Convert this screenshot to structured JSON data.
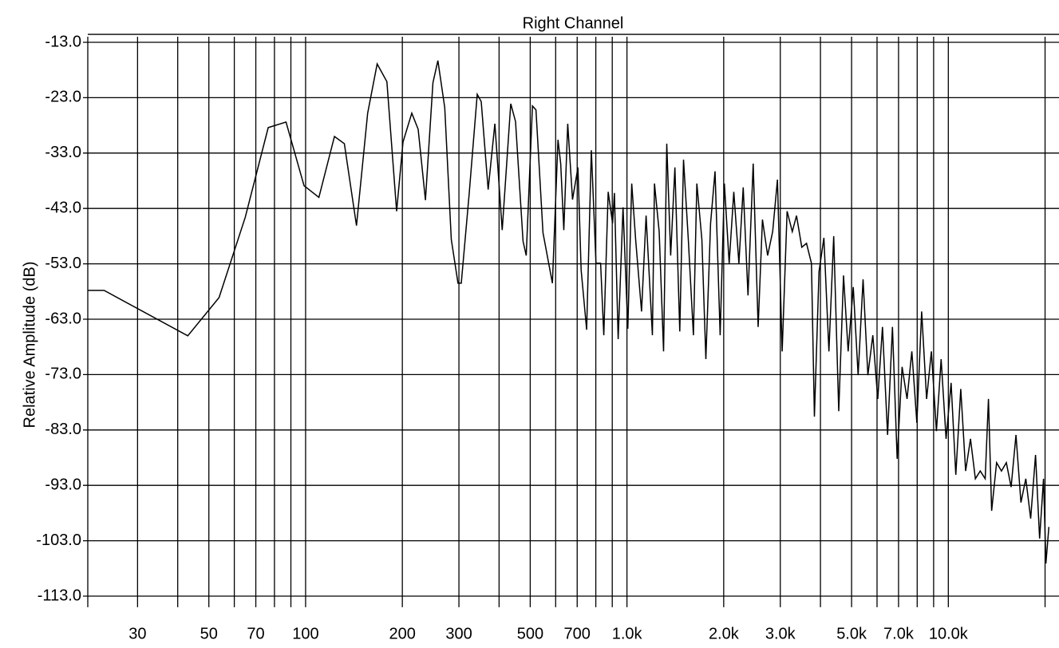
{
  "chart_data": {
    "type": "line",
    "title": "Right Channel",
    "y_label": "Relative Amplitude (dB)",
    "xscale": "log",
    "xlim": [
      21,
      22100
    ],
    "ylim": [
      -115,
      -12
    ],
    "grid": true,
    "xticks": [
      30,
      50,
      70,
      100,
      200,
      300,
      500,
      700,
      {
        "value": 1000,
        "label": "1.0k"
      },
      {
        "value": 2000,
        "label": "2.0k"
      },
      {
        "value": 3000,
        "label": "3.0k"
      },
      {
        "value": 5000,
        "label": "5.0k"
      },
      {
        "value": 7000,
        "label": "7.0k"
      },
      {
        "value": 10000,
        "label": "10.0k"
      }
    ],
    "xminor": [
      40,
      60,
      80,
      90,
      400,
      600,
      800,
      900,
      4000,
      6000,
      8000,
      9000,
      20000
    ],
    "yticks": [
      {
        "value": -13,
        "label": "-13.0"
      },
      {
        "value": -23,
        "label": "-23.0"
      },
      {
        "value": -33,
        "label": "-33.0"
      },
      {
        "value": -43,
        "label": "-43.0"
      },
      {
        "value": -53,
        "label": "-53.0"
      },
      {
        "value": -63,
        "label": "-63.0"
      },
      {
        "value": -73,
        "label": "-73.0"
      },
      {
        "value": -83,
        "label": "-83.0"
      },
      {
        "value": -93,
        "label": "-93.0"
      },
      {
        "value": -103,
        "label": "-103.0"
      },
      {
        "value": -113,
        "label": "-113.0"
      }
    ],
    "x": [
      21,
      23.6,
      43,
      53.8,
      64.9,
      76.5,
      86.9,
      98.9,
      110,
      123,
      132,
      144,
      156,
      167,
      179,
      192,
      201,
      214,
      224,
      236,
      249,
      258,
      271,
      284,
      298,
      305,
      323,
      342,
      352,
      370,
      388,
      409,
      435,
      450,
      475,
      486,
      508,
      521,
      548,
      586,
      610,
      622,
      636,
      654,
      677,
      704,
      720,
      749,
      775,
      801,
      828,
      847,
      874,
      902,
      914,
      939,
      972,
      1006,
      1035,
      1064,
      1110,
      1147,
      1200,
      1218,
      1260,
      1300,
      1330,
      1368,
      1410,
      1460,
      1500,
      1552,
      1610,
      1650,
      1710,
      1760,
      1820,
      1880,
      1950,
      2010,
      2080,
      2150,
      2230,
      2300,
      2380,
      2470,
      2560,
      2640,
      2740,
      2840,
      2940,
      3040,
      3150,
      3270,
      3370,
      3500,
      3620,
      3750,
      3830,
      3960,
      4100,
      4250,
      4400,
      4560,
      4720,
      4880,
      5060,
      5240,
      5430,
      5620,
      5820,
      6030,
      6240,
      6470,
      6700,
      6930,
      7180,
      7440,
      7700,
      7980,
      8260,
      8560,
      8860,
      9180,
      9500,
      9840,
      10200,
      10550,
      10930,
      11320,
      11720,
      12140,
      12570,
      13020,
      13330,
      13640,
      14130,
      14630,
      15150,
      15680,
      16240,
      16820,
      17420,
      18040,
      18680,
      19230,
      19780,
      20120,
      20550
    ],
    "series": [
      {
        "color": "#000000",
        "values": [
          -57.8,
          -57.8,
          -66.0,
          -59.1,
          -44.6,
          -28.4,
          -27.4,
          -38.9,
          -41.0,
          -30.0,
          -31.3,
          -46.1,
          -25.8,
          -16.9,
          -20.1,
          -43.5,
          -31.0,
          -25.8,
          -28.7,
          -41.5,
          -20.3,
          -16.3,
          -24.8,
          -48.6,
          -56.5,
          -56.5,
          -40.2,
          -22.4,
          -23.7,
          -39.6,
          -27.7,
          -46.9,
          -24.1,
          -27.3,
          -48.9,
          -51.5,
          -24.5,
          -25.2,
          -47.4,
          -56.5,
          -30.6,
          -34.9,
          -46.9,
          -27.7,
          -41.4,
          -35.6,
          -54.1,
          -64.9,
          -32.5,
          -52.9,
          -52.9,
          -65.9,
          -40.0,
          -45.7,
          -40.2,
          -66.6,
          -42.8,
          -64.7,
          -38.5,
          -48.6,
          -61.6,
          -44.3,
          -65.9,
          -38.5,
          -47.2,
          -68.8,
          -31.3,
          -51.5,
          -35.6,
          -65.2,
          -34.2,
          -48.6,
          -65.9,
          -38.5,
          -48.6,
          -70.2,
          -45.7,
          -36.3,
          -65.9,
          -38.5,
          -52.9,
          -40.0,
          -52.9,
          -39.2,
          -58.7,
          -34.9,
          -64.4,
          -45.0,
          -51.5,
          -47.2,
          -37.8,
          -68.8,
          -43.5,
          -47.2,
          -44.3,
          -50.0,
          -49.3,
          -52.9,
          -80.6,
          -54.4,
          -48.3,
          -68.8,
          -48.0,
          -79.6,
          -55.1,
          -68.8,
          -57.2,
          -73.1,
          -55.8,
          -73.1,
          -65.9,
          -77.4,
          -64.4,
          -83.9,
          -64.4,
          -88.2,
          -71.6,
          -77.4,
          -68.8,
          -81.7,
          -61.6,
          -77.4,
          -68.8,
          -83.2,
          -70.2,
          -84.6,
          -74.5,
          -91.1,
          -75.6,
          -90.4,
          -84.6,
          -91.8,
          -90.4,
          -91.8,
          -77.4,
          -97.6,
          -88.9,
          -90.4,
          -88.9,
          -93.3,
          -83.9,
          -96.1,
          -91.8,
          -99.0,
          -87.5,
          -102.6,
          -91.8,
          -107.1,
          -100.5
        ]
      }
    ]
  }
}
